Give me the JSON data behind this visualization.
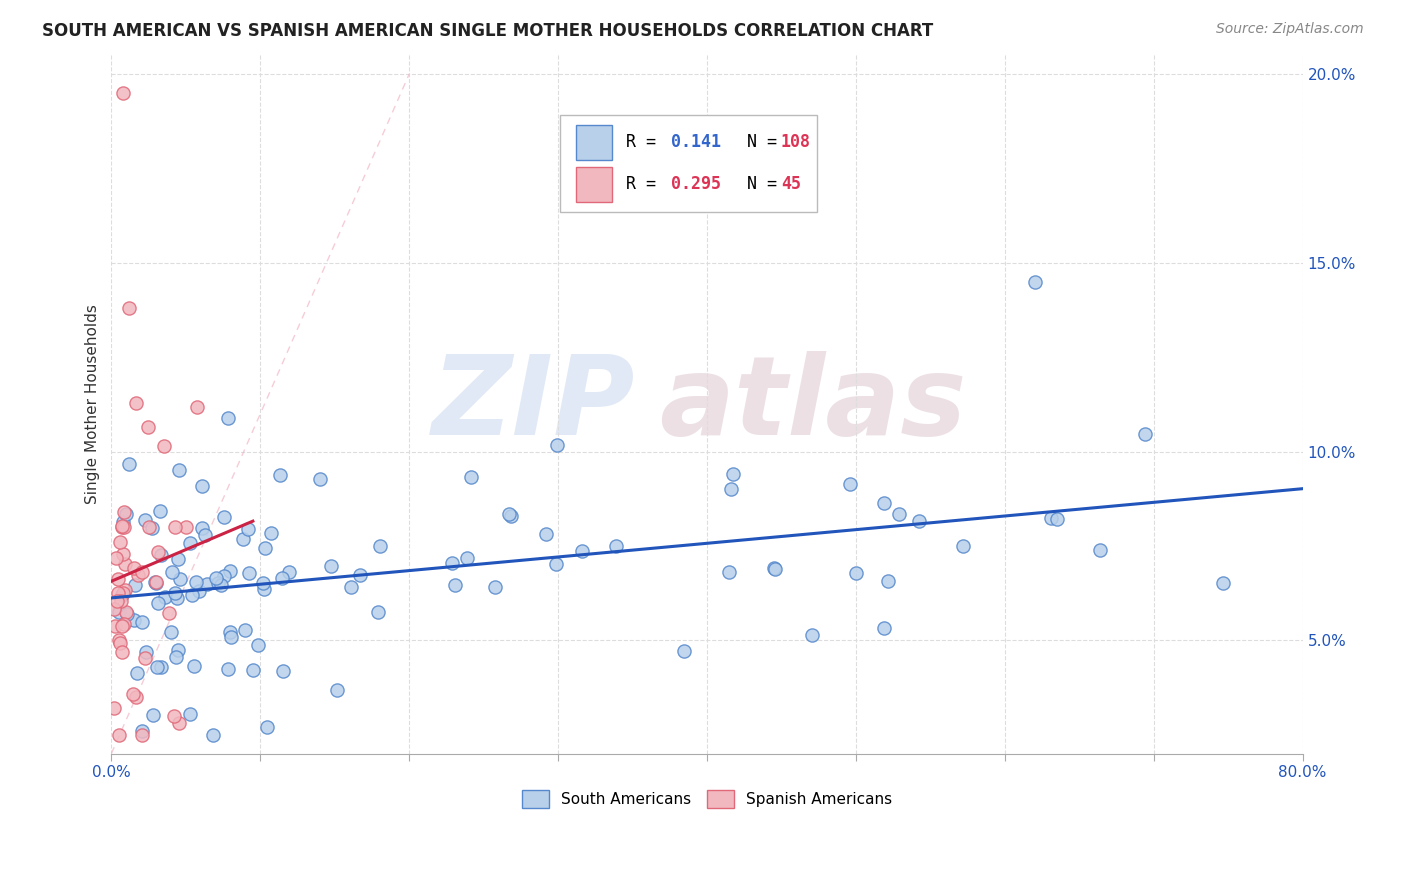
{
  "title": "SOUTH AMERICAN VS SPANISH AMERICAN SINGLE MOTHER HOUSEHOLDS CORRELATION CHART",
  "source": "Source: ZipAtlas.com",
  "ylabel": "Single Mother Households",
  "xlim": [
    0.0,
    0.8
  ],
  "ylim": [
    0.02,
    0.205
  ],
  "ytick_vals": [
    0.05,
    0.1,
    0.15,
    0.2
  ],
  "ytick_labels": [
    "5.0%",
    "10.0%",
    "15.0%",
    "20.0%"
  ],
  "legend1_r": "0.141",
  "legend1_n": "108",
  "legend2_r": "0.295",
  "legend2_n": "45",
  "blue_fill": "#b8d0ea",
  "blue_edge": "#5588cc",
  "pink_fill": "#f2b8c0",
  "pink_edge": "#e06878",
  "trend_blue": "#2255bb",
  "trend_pink": "#cc2244",
  "ref_line_color": "#f0a0b0",
  "legend_r_blue": "#3366cc",
  "legend_r_pink": "#dd3355",
  "legend_n_color": "#dd3355",
  "watermark_blue": "ZIP",
  "watermark_pink": "atlas"
}
